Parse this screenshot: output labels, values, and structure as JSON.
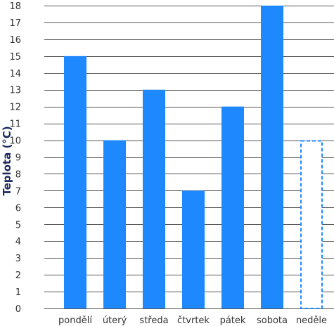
{
  "colors": {
    "bar": "#1e88ff",
    "grid": "#555555",
    "text": "#333333",
    "axis_title": "#1f2a5c"
  },
  "chart_data": {
    "type": "bar",
    "title": "",
    "xlabel": "",
    "ylabel": "Teplota (°C)",
    "ylim": [
      0,
      18
    ],
    "yticks": [
      0,
      1,
      2,
      3,
      4,
      5,
      6,
      7,
      8,
      9,
      10,
      11,
      12,
      13,
      14,
      15,
      16,
      17,
      18
    ],
    "categories": [
      "pondělí",
      "úterý",
      "středa",
      "čtvrtek",
      "pátek",
      "sobota",
      "neděle"
    ],
    "values": [
      15,
      10,
      13,
      7,
      12,
      18,
      10
    ],
    "dashed_outline": [
      false,
      false,
      false,
      false,
      false,
      false,
      true
    ],
    "grid": true,
    "legend": "none"
  }
}
